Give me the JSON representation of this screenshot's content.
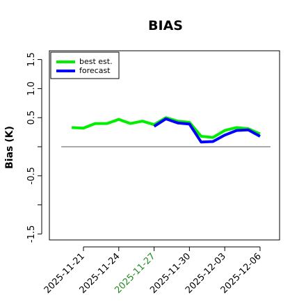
{
  "chart_data": {
    "type": "line",
    "title": "BIAS",
    "xlabel": "",
    "ylabel": "Bias (K)",
    "ylim": [
      -1.6,
      1.65
    ],
    "yticks": [
      -1.5,
      -1.0,
      -0.5,
      0.0,
      0.5,
      1.0,
      1.5
    ],
    "ytick_labels": [
      "-1.5",
      "",
      "-0.5",
      "",
      "0.5",
      "1.0",
      "1.5"
    ],
    "xticks": [
      {
        "index": 1,
        "label": "2025-11-21",
        "color": "#000000"
      },
      {
        "index": 4,
        "label": "2025-11-24",
        "color": "#000000"
      },
      {
        "index": 7,
        "label": "2025-11-27",
        "color": "#228B22"
      },
      {
        "index": 10,
        "label": "2025-11-30",
        "color": "#000000"
      },
      {
        "index": 13,
        "label": "2025-12-03",
        "color": "#000000"
      },
      {
        "index": 16,
        "label": "2025-12-06",
        "color": "#000000"
      }
    ],
    "x_range": [
      -1,
      17
    ],
    "reference_line": 0,
    "legend": {
      "position": "top-left",
      "entries": [
        "best est.",
        "forecast"
      ]
    },
    "series": [
      {
        "name": "best est.",
        "color": "#00ee00",
        "x": [
          0,
          1,
          2,
          3,
          4,
          5,
          6,
          7,
          8,
          9,
          10,
          11,
          12,
          13,
          14,
          15,
          16
        ],
        "values": [
          0.33,
          0.32,
          0.4,
          0.4,
          0.47,
          0.4,
          0.44,
          0.38,
          0.5,
          0.44,
          0.42,
          0.18,
          0.16,
          0.28,
          0.33,
          0.31,
          0.22
        ]
      },
      {
        "name": "forecast",
        "color": "#0000ff",
        "x": [
          7,
          8,
          9,
          10,
          11,
          12,
          13,
          14,
          15,
          16
        ],
        "values": [
          0.35,
          0.48,
          0.41,
          0.39,
          0.08,
          0.09,
          0.2,
          0.28,
          0.29,
          0.18
        ]
      }
    ]
  }
}
